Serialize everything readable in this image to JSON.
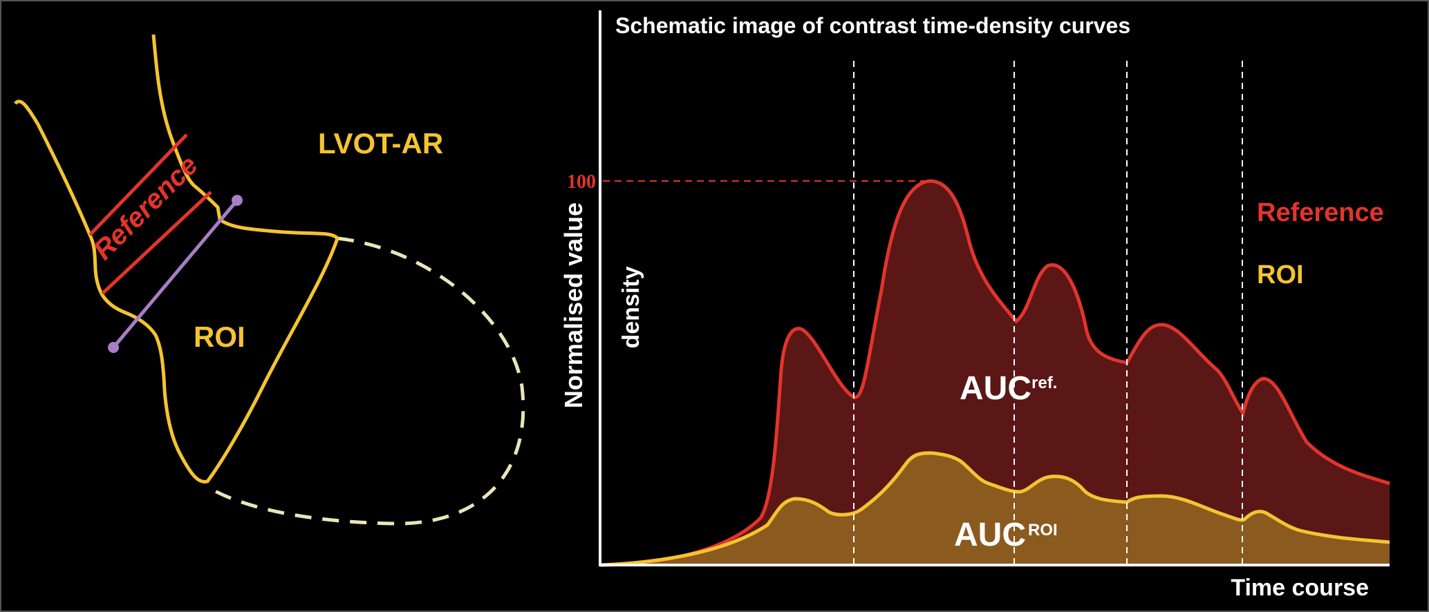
{
  "left_panel": {
    "label_lvot": "LVOT-AR",
    "label_roi": "ROI",
    "label_reference": "Reference"
  },
  "chart": {
    "title": "Schematic image of contrast time-density curves",
    "y_axis_label": "Normalised value",
    "y_sub_label": "density",
    "x_axis_label": "Time course",
    "y_tick_100": "100",
    "legend_reference": "Reference",
    "legend_roi": "ROI",
    "auc_ref_main": "AUC",
    "auc_ref_sup": "ref.",
    "auc_roi_main": "AUC",
    "auc_roi_sup": "ROI"
  },
  "colors": {
    "background": "#000000",
    "reference_line": "#e3342c",
    "reference_fill": "#5a1715",
    "roi_line": "#f4c430",
    "roi_fill": "#8a5a1e",
    "purple": "#a77fc6",
    "dashed_outline": "#e9e6b8",
    "axis": "#ffffff"
  }
}
